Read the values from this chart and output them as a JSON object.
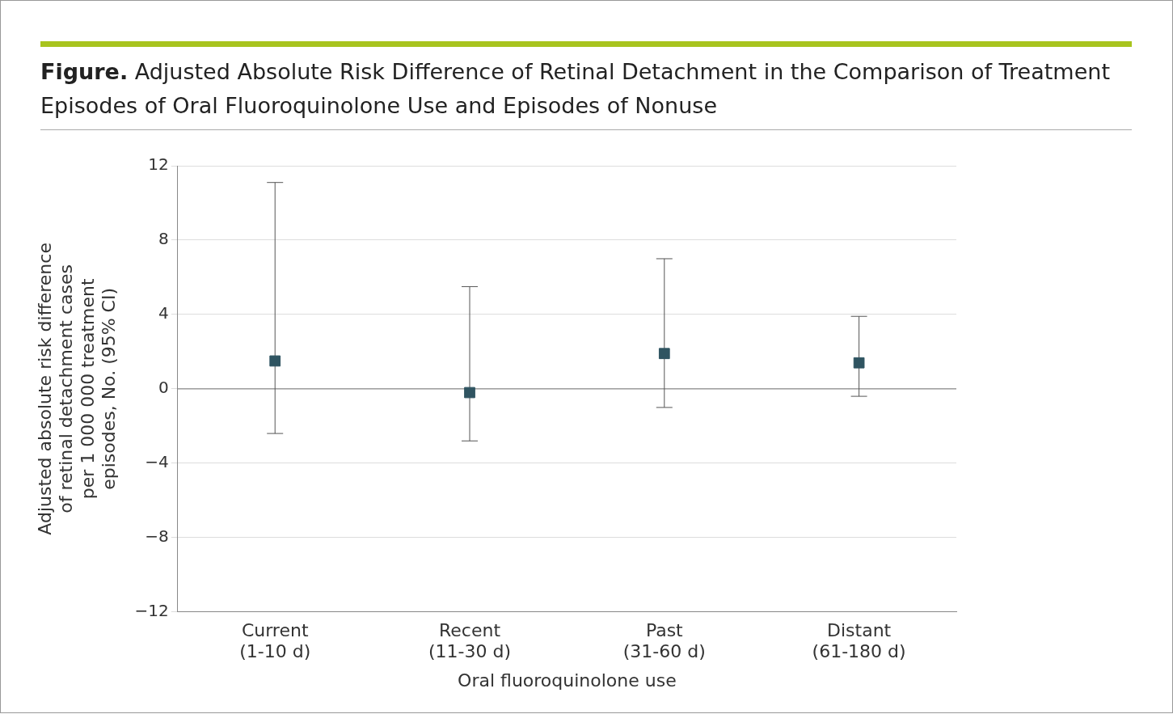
{
  "chart_data": {
    "type": "scatter",
    "title": "Figure. Adjusted Absolute Risk Difference of Retinal Detachment in the Comparison of Treatment Episodes of Oral Fluoroquinolone Use and Episodes of Nonuse",
    "xlabel": "Oral fluoroquinolone use",
    "ylabel": "Adjusted absolute risk difference\nof retinal detachment cases\nper 1 000 000 treatment\nepisodes, No. (95% CI)",
    "categories": [
      "Current\n(1-10 d)",
      "Recent\n(11-30 d)",
      "Past\n(31-60 d)",
      "Distant\n(61-180 d)"
    ],
    "values": [
      1.5,
      -0.2,
      1.9,
      1.4
    ],
    "errors": [
      [
        -2.4,
        11.1
      ],
      [
        -2.8,
        5.5
      ],
      [
        -1.0,
        7.0
      ],
      [
        -0.4,
        3.9
      ]
    ],
    "color": "#2f5461",
    "marker": "square",
    "grid": "y",
    "ylim": [
      -12,
      12
    ],
    "yticks": [
      {
        "value": -12,
        "label": "−12"
      },
      {
        "value": -8,
        "label": "−8"
      },
      {
        "value": -4,
        "label": "−4"
      },
      0,
      4,
      8,
      12
    ],
    "ref_lines": [
      {
        "axis": "y",
        "value": 0,
        "color": "#8c8c8c"
      }
    ]
  }
}
